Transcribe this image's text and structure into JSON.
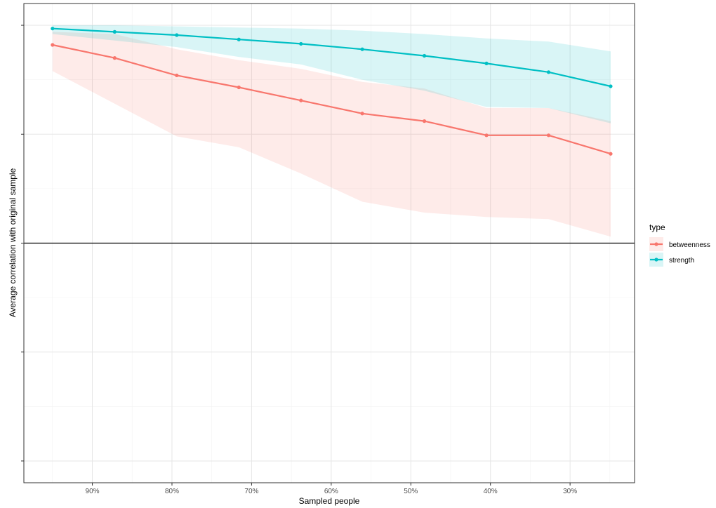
{
  "chart_data": {
    "type": "line",
    "title": "",
    "xlabel": "Sampled people",
    "ylabel": "Average correlation with original sample",
    "x_reversed": true,
    "xlim": [
      98.6,
      21.9
    ],
    "ylim": [
      -1.1,
      1.1
    ],
    "x_ticks": [
      90,
      80,
      70,
      60,
      50,
      40,
      30
    ],
    "x_tick_labels": [
      "90%",
      "80%",
      "70%",
      "60%",
      "50%",
      "40%",
      "30%"
    ],
    "y_ticks": [
      -1,
      -0.5,
      0,
      0.5,
      1
    ],
    "y_tick_labels": [
      "",
      "",
      "",
      "",
      ""
    ],
    "zero_line": 0,
    "grid": true,
    "x": [
      95,
      87.2,
      79.4,
      71.6,
      63.8,
      56.1,
      48.3,
      40.5,
      32.7,
      24.9
    ],
    "series": [
      {
        "name": "betweenness",
        "color": "#F8766D",
        "values": [
          0.91,
          0.85,
          0.77,
          0.715,
          0.655,
          0.595,
          0.56,
          0.495,
          0.495,
          0.41
        ],
        "lower": [
          0.79,
          0.64,
          0.49,
          0.44,
          0.32,
          0.19,
          0.14,
          0.12,
          0.11,
          0.03
        ],
        "upper": [
          0.97,
          0.96,
          0.89,
          0.84,
          0.8,
          0.74,
          0.71,
          0.62,
          0.62,
          0.56
        ]
      },
      {
        "name": "strength",
        "color": "#00BFC4",
        "values": [
          0.985,
          0.97,
          0.955,
          0.935,
          0.915,
          0.89,
          0.86,
          0.825,
          0.785,
          0.72
        ],
        "lower": [
          0.96,
          0.93,
          0.9,
          0.855,
          0.82,
          0.75,
          0.7,
          0.625,
          0.62,
          0.55
        ],
        "upper": [
          1.0,
          1.0,
          0.995,
          0.99,
          0.985,
          0.975,
          0.96,
          0.94,
          0.925,
          0.88
        ]
      }
    ],
    "legend": {
      "title": "type",
      "position": "right"
    }
  }
}
